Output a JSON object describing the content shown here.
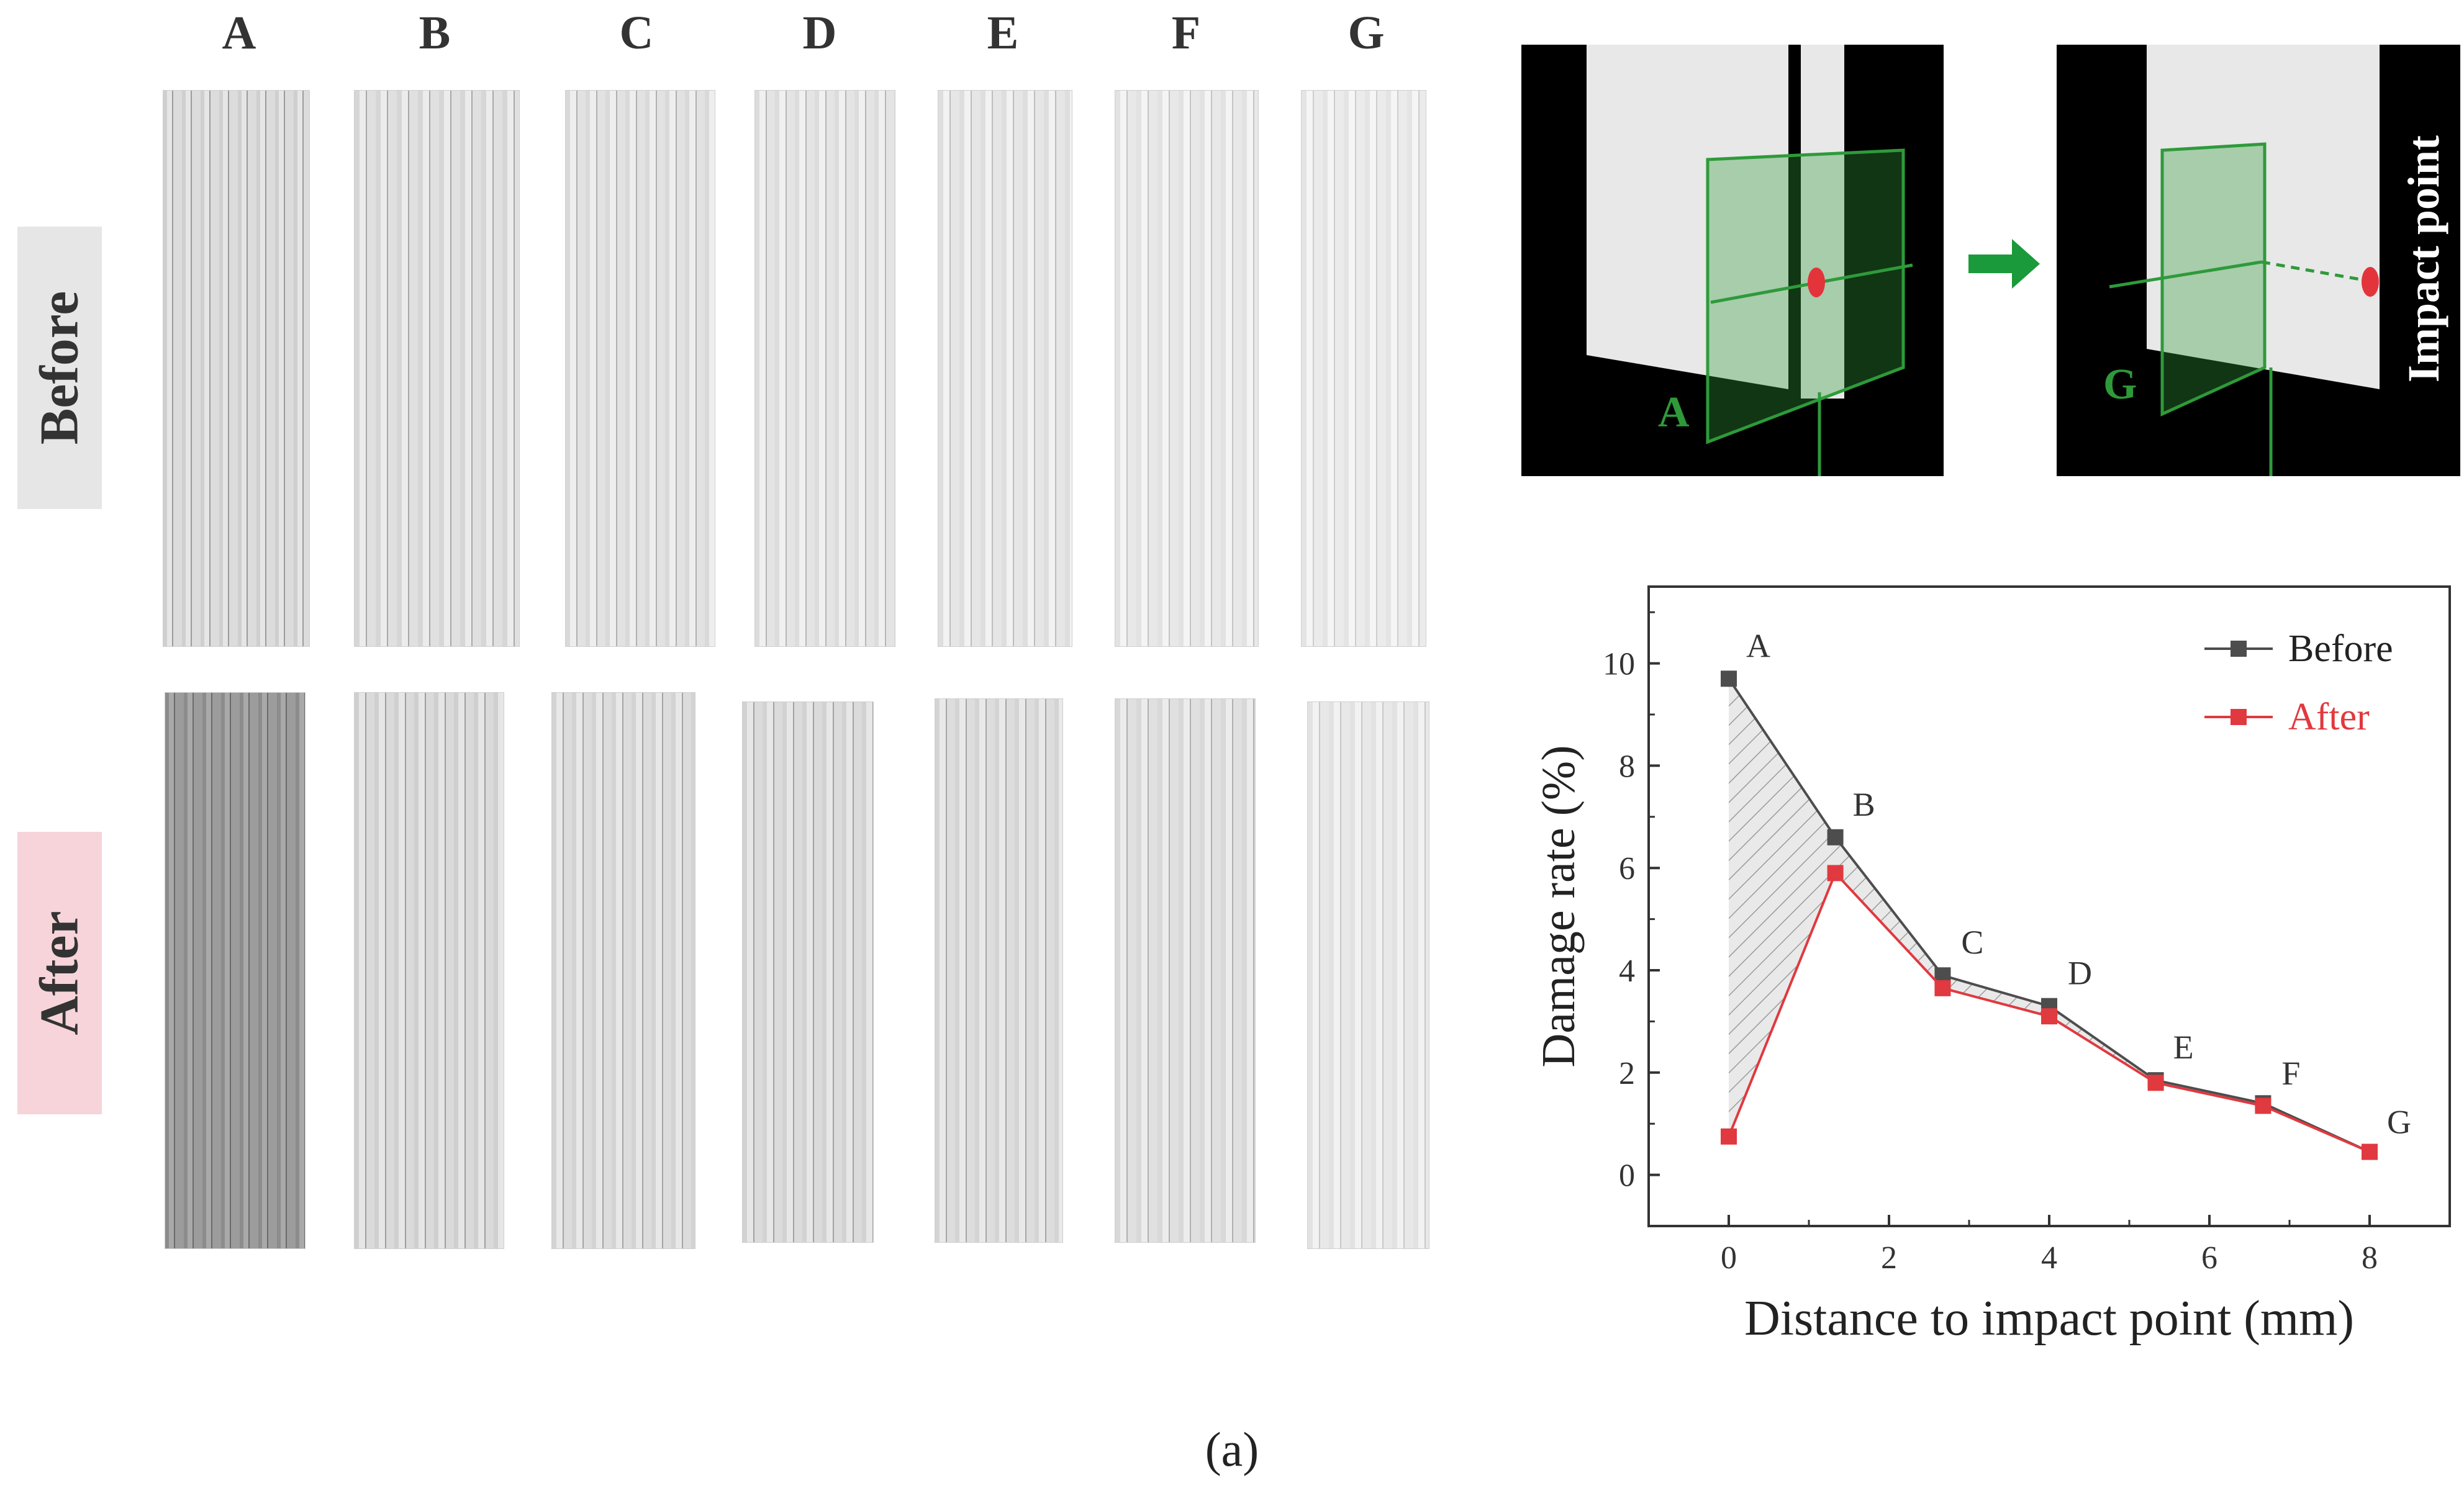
{
  "columns": [
    "A",
    "B",
    "C",
    "D",
    "E",
    "F",
    "G"
  ],
  "rows": {
    "before_label": "Before",
    "after_label": "After"
  },
  "schematic": {
    "left_marker": "A",
    "right_marker": "G",
    "impact_label": "Impact point"
  },
  "subfigure_label": "(a)",
  "colors": {
    "before": "#4d4d4d",
    "after": "#e0393f",
    "tag_before": "#e6e6e6",
    "tag_after": "#f6d4da",
    "grid_green": "#2e9a3a"
  },
  "chart_data": {
    "type": "line",
    "xlabel": "Distance to impact point (mm)",
    "ylabel": "Damage rate (%)",
    "xlim": [
      -1,
      9
    ],
    "ylim": [
      -1,
      11.5
    ],
    "xticks": [
      0,
      2,
      4,
      6,
      8
    ],
    "yticks": [
      0,
      2,
      4,
      6,
      8,
      10
    ],
    "grid": false,
    "legend": "top-right",
    "point_labels": [
      "A",
      "B",
      "C",
      "D",
      "E",
      "F",
      "G"
    ],
    "x": [
      0,
      1.33,
      2.67,
      4.0,
      5.33,
      6.67,
      8.0
    ],
    "series": [
      {
        "name": "Before",
        "color": "#4d4d4d",
        "values": [
          9.7,
          6.6,
          3.9,
          3.3,
          1.85,
          1.4,
          0.45
        ]
      },
      {
        "name": "After",
        "color": "#e0393f",
        "values": [
          0.75,
          5.9,
          3.65,
          3.1,
          1.8,
          1.35,
          0.45
        ]
      }
    ],
    "shaded_between_series": true
  }
}
